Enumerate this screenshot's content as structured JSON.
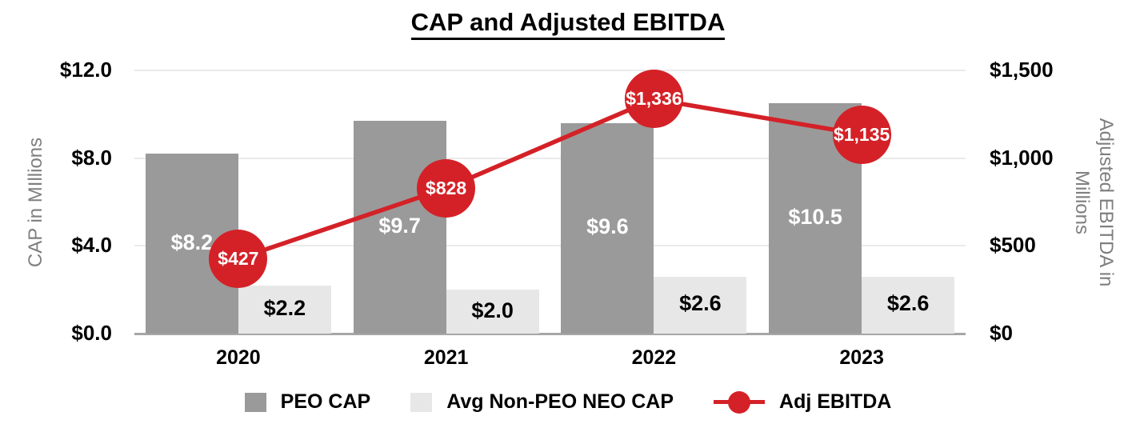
{
  "title": "CAP and Adjusted EBITDA",
  "colors": {
    "peo_bar": "#9a9a9a",
    "non_peo_bar": "#e7e7e7",
    "line_red": "#d42127",
    "gridline": "#ebebeb",
    "axis_line": "#a6a6a6",
    "axis_title_gray": "#7f7f7f",
    "bar_label_on_dark": "#ffffff",
    "bar_label_on_light": "#000000"
  },
  "chart_data": {
    "type": "bar",
    "subtype": "grouped-bars-with-line-overlay",
    "title": "CAP and Adjusted EBITDA",
    "categories": [
      "2020",
      "2021",
      "2022",
      "2023"
    ],
    "series": [
      {
        "name": "PEO CAP",
        "kind": "bar",
        "axis": "left",
        "color": "#9a9a9a",
        "values": [
          8.2,
          9.7,
          9.6,
          10.5
        ],
        "labels": [
          "$8.2",
          "$9.7",
          "$9.6",
          "$10.5"
        ]
      },
      {
        "name": "Avg Non-PEO NEO CAP",
        "kind": "bar",
        "axis": "left",
        "color": "#e7e7e7",
        "values": [
          2.2,
          2.0,
          2.6,
          2.6
        ],
        "labels": [
          "$2.2",
          "$2.0",
          "$2.6",
          "$2.6"
        ]
      },
      {
        "name": "Adj EBITDA",
        "kind": "line",
        "axis": "right",
        "color": "#d42127",
        "values": [
          427,
          828,
          1336,
          1135
        ],
        "labels": [
          "$427",
          "$828",
          "$1,336",
          "$1,135"
        ]
      }
    ],
    "left_axis": {
      "title": "CAP in MIllions",
      "range": [
        0,
        12
      ],
      "tick_values": [
        0,
        4,
        8,
        12
      ],
      "tick_labels": [
        "$0.0",
        "$4.0",
        "$8.0",
        "$12.0"
      ]
    },
    "right_axis": {
      "title_lines": [
        "Adjusted EBITDA in",
        "Millions"
      ],
      "range": [
        0,
        1500
      ],
      "tick_values": [
        0,
        500,
        1000,
        1500
      ],
      "tick_labels": [
        "$0",
        "$500",
        "$1,000",
        "$1,500"
      ]
    },
    "grid": "horizontal-major-only",
    "legend_position": "bottom"
  }
}
